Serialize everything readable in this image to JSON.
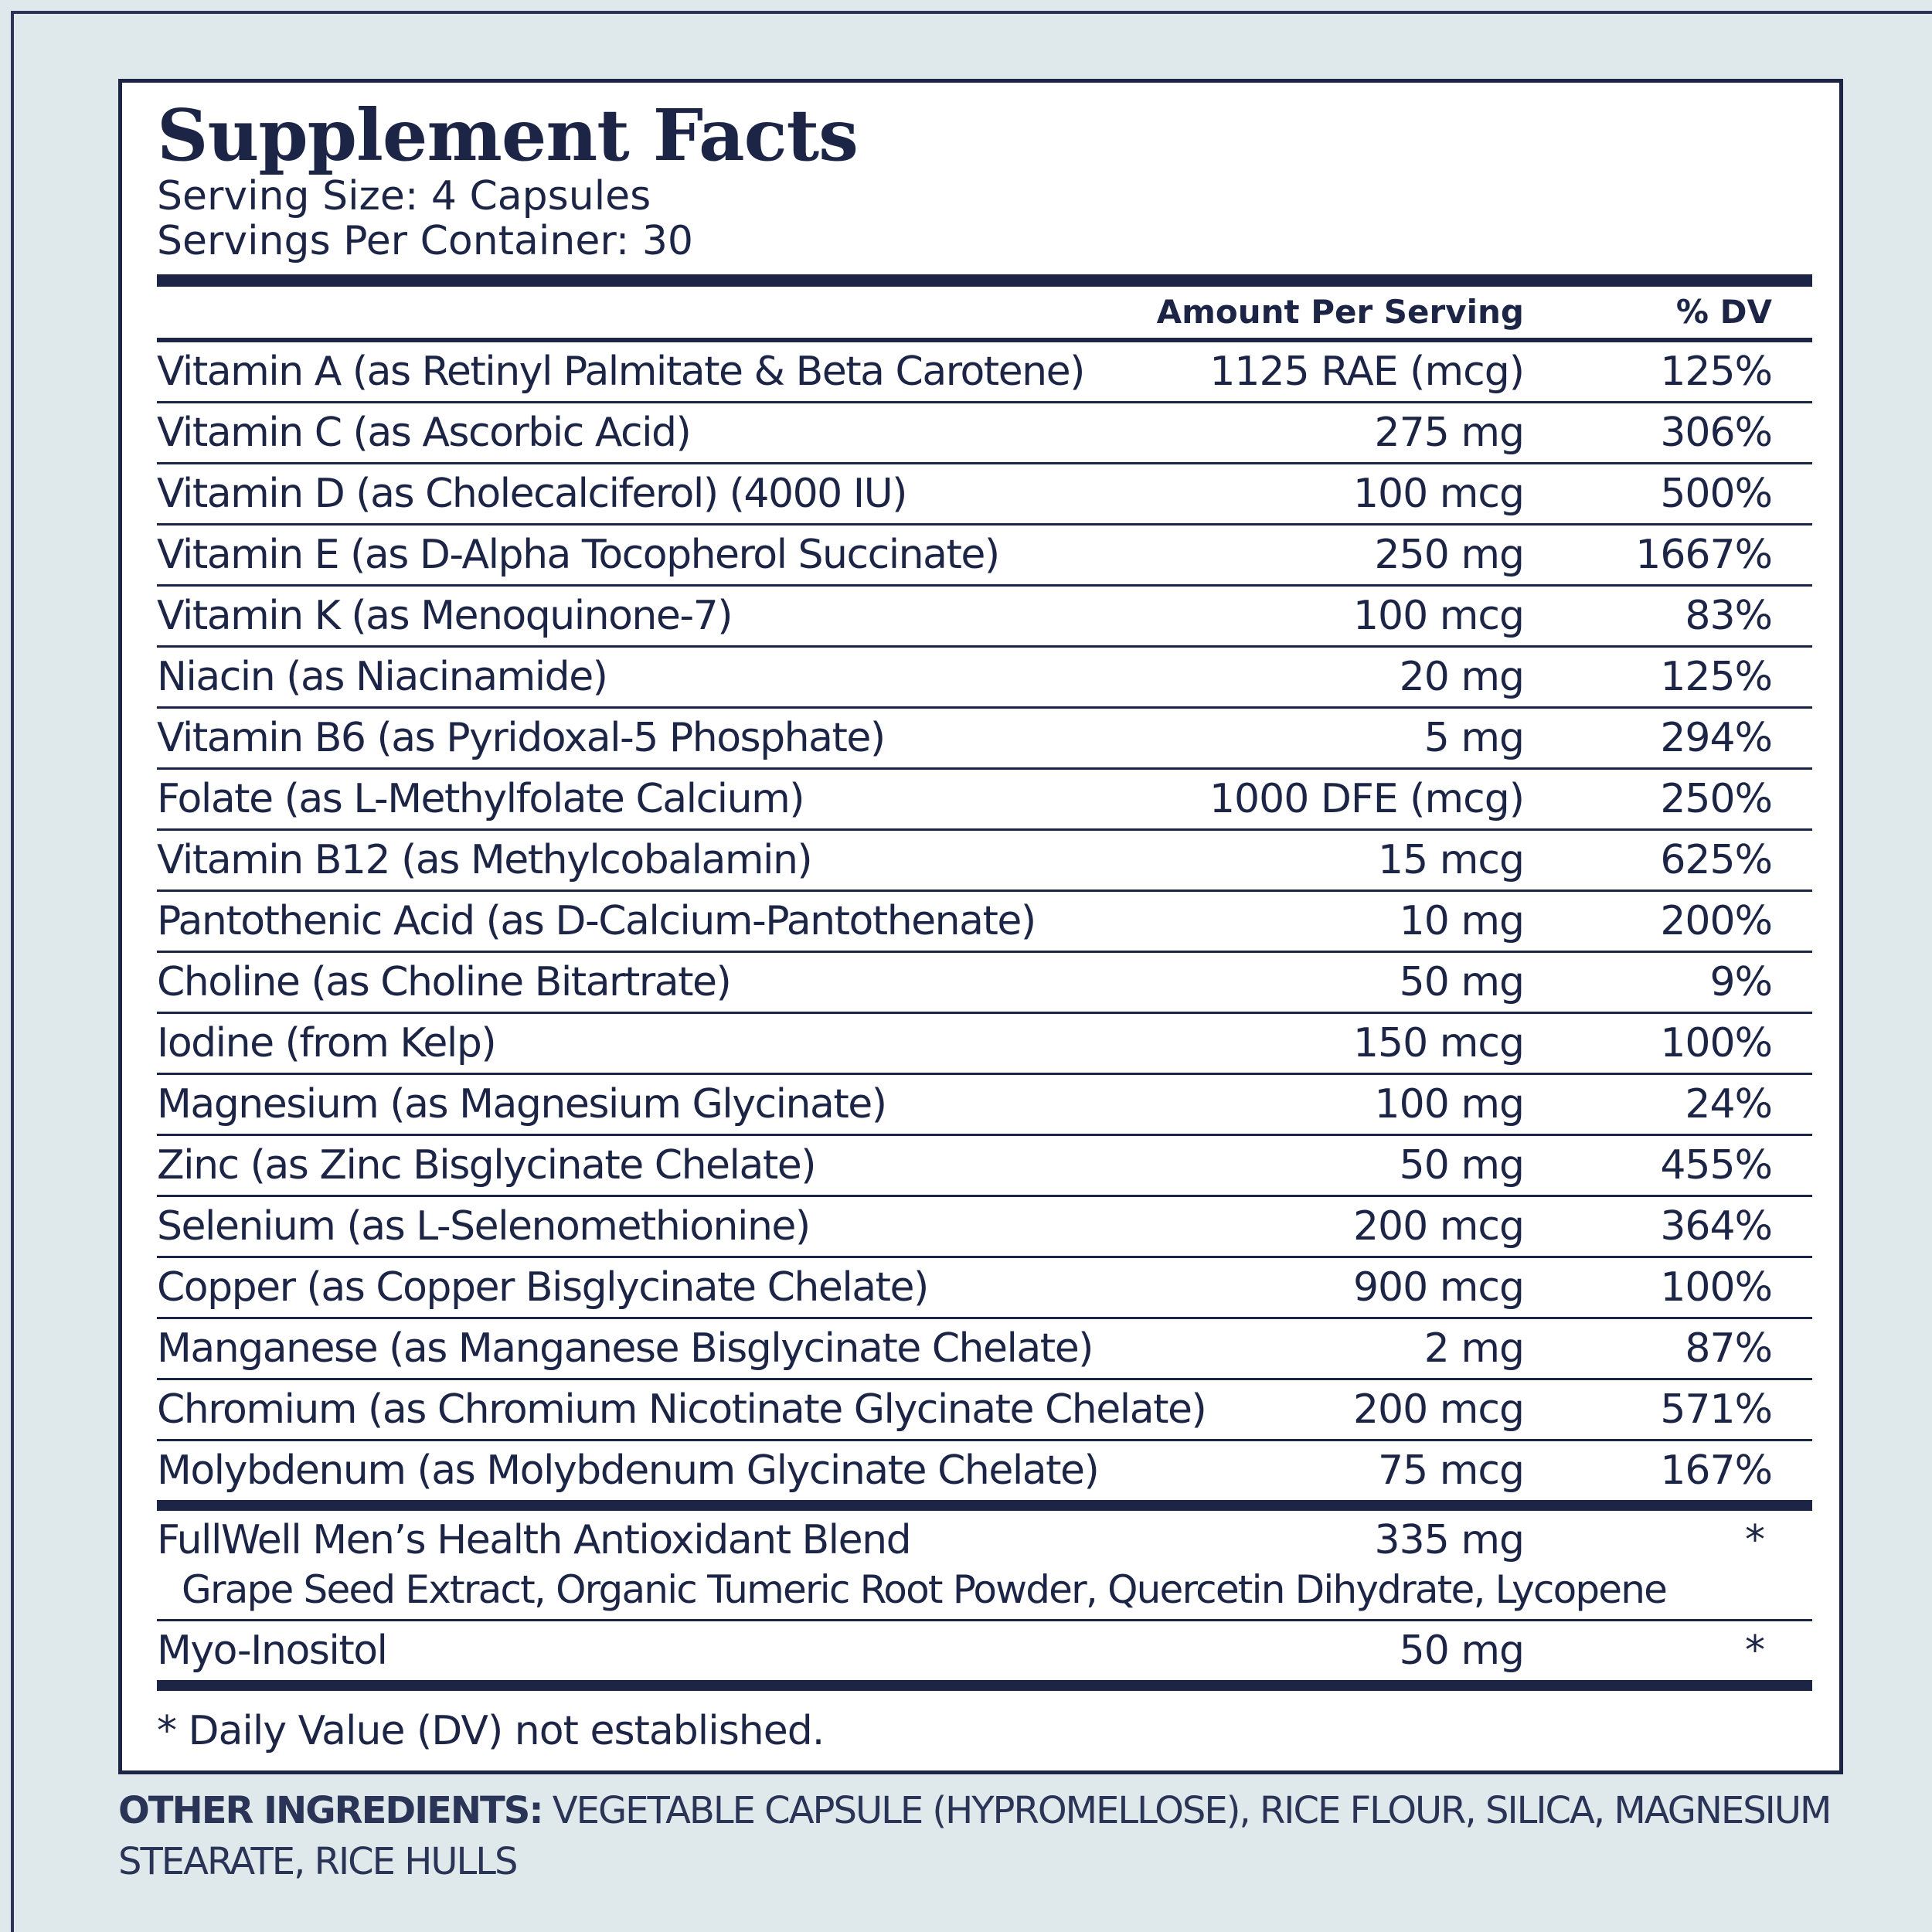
{
  "header": {
    "title": "Supplement Facts",
    "serving_size": "Serving Size: 4 Capsules",
    "servings_per_container": "Servings Per Container: 30"
  },
  "table": {
    "columns": [
      "Amount Per Serving",
      "% DV"
    ],
    "rows": [
      [
        "Vitamin A (as Retinyl Palmitate & Beta Carotene)",
        "1125 RAE (mcg)",
        "125%"
      ],
      [
        "Vitamin C (as Ascorbic Acid)",
        "275 mg",
        "306%"
      ],
      [
        "Vitamin D (as Cholecalciferol) (4000 IU)",
        "100 mcg",
        "500%"
      ],
      [
        "Vitamin E (as D-Alpha Tocopherol Succinate)",
        "250 mg",
        "1667%"
      ],
      [
        "Vitamin K (as Menoquinone-7)",
        "100 mcg",
        "83%"
      ],
      [
        "Niacin (as Niacinamide)",
        "20 mg",
        "125%"
      ],
      [
        "Vitamin B6 (as Pyridoxal-5 Phosphate)",
        "5 mg",
        "294%"
      ],
      [
        "Folate (as L-Methylfolate Calcium)",
        "1000 DFE (mcg)",
        "250%"
      ],
      [
        "Vitamin B12 (as Methylcobalamin)",
        "15 mcg",
        "625%"
      ],
      [
        "Pantothenic Acid (as D-Calcium-Pantothenate)",
        "10 mg",
        "200%"
      ],
      [
        "Choline (as Choline Bitartrate)",
        "50 mg",
        "9%"
      ],
      [
        "Iodine (from Kelp)",
        "150 mcg",
        "100%"
      ],
      [
        "Magnesium (as Magnesium Glycinate)",
        "100 mg",
        "24%"
      ],
      [
        "Zinc (as Zinc Bisglycinate Chelate)",
        "50 mg",
        "455%"
      ],
      [
        "Selenium (as L-Selenomethionine)",
        "200 mcg",
        "364%"
      ],
      [
        "Copper (as Copper Bisglycinate Chelate)",
        "900 mcg",
        "100%"
      ],
      [
        "Manganese (as Manganese Bisglycinate Chelate)",
        "2 mg",
        "87%"
      ],
      [
        "Chromium (as Chromium Nicotinate Glycinate Chelate)",
        "200 mcg",
        "571%"
      ],
      [
        "Molybdenum (as Molybdenum Glycinate Chelate)",
        "75 mcg",
        "167%"
      ]
    ]
  },
  "blend": {
    "name": "FullWell Men’s Health Antioxidant Blend",
    "amount": "335 mg",
    "dv": "*",
    "ingredients": "Grape Seed Extract, Organic Tumeric Root Powder, Quercetin Dihydrate, Lycopene"
  },
  "extra": {
    "name": "Myo-Inositol",
    "amount": "50 mg",
    "dv": "*"
  },
  "footnote": "* Daily Value (DV) not established.",
  "other_ingredients": {
    "label": "OTHER INGREDIENTS:",
    "text": "VEGETABLE CAPSULE (HYPROMELLOSE), RICE FLOUR, SILICA, MAGNESIUM STEARATE, RICE HULLS"
  }
}
